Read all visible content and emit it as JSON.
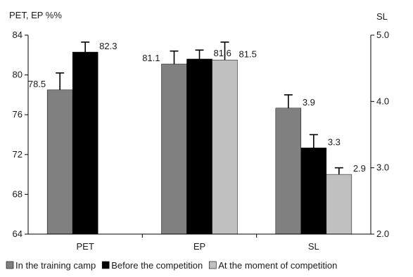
{
  "chart_data": {
    "type": "bar",
    "y_left_label": "PET, EP %%",
    "y_right_label": "SL",
    "categories": [
      "PET",
      "EP",
      "SL"
    ],
    "y_left_ticks": [
      "84",
      "80",
      "76",
      "72",
      "68",
      "64"
    ],
    "y_right_ticks": [
      "5.0",
      "4.0",
      "3.0",
      "2.0"
    ],
    "ylim_left": [
      64,
      84
    ],
    "ylim_right": [
      2.0,
      5.0
    ],
    "series": [
      {
        "name": "In the training camp",
        "color": "#808080",
        "values": [
          78.5,
          81.1,
          3.9
        ],
        "labels": [
          "78.5",
          "81.1",
          "3.9"
        ],
        "err": [
          1.7,
          1.3,
          0.2
        ]
      },
      {
        "name": "Before the competition",
        "color": "#000000",
        "values": [
          82.3,
          81.6,
          3.3
        ],
        "labels": [
          "82.3",
          "81.6",
          "3.3"
        ],
        "err": [
          1.0,
          0.9,
          0.2
        ]
      },
      {
        "name": "At the moment of competition",
        "color": "#c0c0c0",
        "values": [
          null,
          81.5,
          2.9
        ],
        "labels": [
          "",
          "81.5",
          "2.9"
        ],
        "err": [
          null,
          1.8,
          0.1
        ]
      }
    ],
    "axis_on_right_for": [
      "SL"
    ],
    "legend_position": "bottom"
  }
}
